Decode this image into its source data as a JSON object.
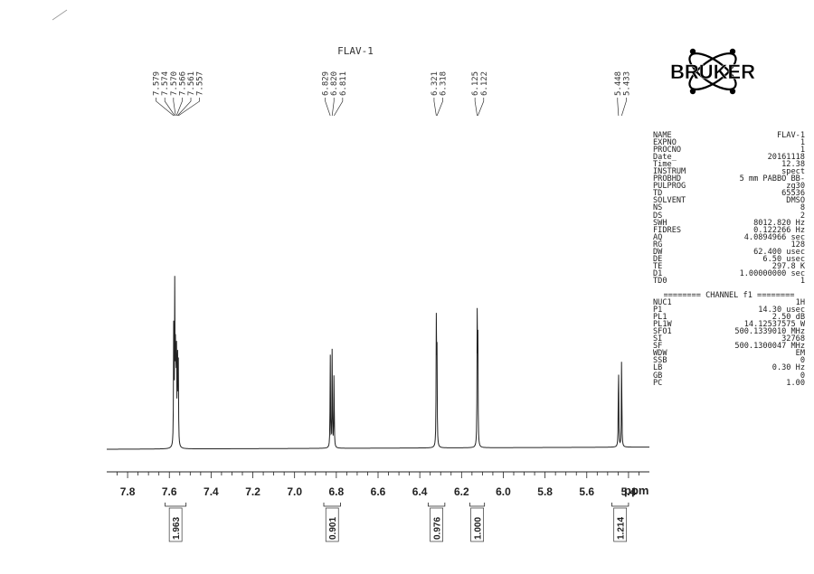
{
  "chart_data": {
    "type": "line",
    "title": "FLAV-1",
    "xlabel": "ppm",
    "xlim": [
      7.9,
      5.3
    ],
    "ylim": [
      0,
      1.0
    ],
    "x_ticks": [
      7.8,
      7.6,
      7.4,
      7.2,
      7.0,
      6.8,
      6.6,
      6.4,
      6.2,
      6.0,
      5.8,
      5.6,
      5.4
    ],
    "x_tick_labels": [
      "7.8",
      "7.6",
      "7.4",
      "7.2",
      "7.0",
      "6.8",
      "6.6",
      "6.4",
      "6.2",
      "6.0",
      "5.8",
      "5.6",
      "5.4"
    ],
    "series": [
      {
        "peaks": [
          {
            "ppm": 7.579,
            "height": 0.7
          },
          {
            "ppm": 7.574,
            "height": 0.86
          },
          {
            "ppm": 7.57,
            "height": 0.62
          },
          {
            "ppm": 7.566,
            "height": 0.58
          },
          {
            "ppm": 7.561,
            "height": 0.62
          },
          {
            "ppm": 7.557,
            "height": 0.45
          },
          {
            "ppm": 6.829,
            "height": 0.52
          },
          {
            "ppm": 6.82,
            "height": 0.54
          },
          {
            "ppm": 6.811,
            "height": 0.45
          },
          {
            "ppm": 6.321,
            "height": 0.66
          },
          {
            "ppm": 6.318,
            "height": 0.62
          },
          {
            "ppm": 6.125,
            "height": 0.69
          },
          {
            "ppm": 6.122,
            "height": 0.64
          },
          {
            "ppm": 5.448,
            "height": 0.52
          },
          {
            "ppm": 5.433,
            "height": 0.54
          }
        ]
      }
    ],
    "peak_label_groups": [
      {
        "labels": [
          "7.579",
          "7.574",
          "7.570",
          "7.566",
          "7.561",
          "7.557"
        ]
      },
      {
        "labels": [
          "6.829",
          "6.820",
          "6.811"
        ]
      },
      {
        "labels": [
          "6.321",
          "6.318"
        ]
      },
      {
        "labels": [
          "6.125",
          "6.122"
        ]
      },
      {
        "labels": [
          "5.448",
          "5.433"
        ]
      }
    ],
    "integrals": [
      {
        "label": "1.963",
        "from": 7.62,
        "to": 7.52
      },
      {
        "label": "0.901",
        "from": 6.86,
        "to": 6.78
      },
      {
        "label": "0.976",
        "from": 6.36,
        "to": 6.28
      },
      {
        "label": "1.000",
        "from": 6.16,
        "to": 6.09
      },
      {
        "label": "1.214",
        "from": 5.48,
        "to": 5.4
      }
    ]
  },
  "logo": {
    "text": "BRUKER"
  },
  "acquisition_params": [
    {
      "name": "NAME",
      "value": "FLAV-1"
    },
    {
      "name": "EXPNO",
      "value": "1"
    },
    {
      "name": "PROCNO",
      "value": "1"
    },
    {
      "name": "Date_",
      "value": "20161118"
    },
    {
      "name": "Time",
      "value": "12.38"
    },
    {
      "name": "INSTRUM",
      "value": "spect"
    },
    {
      "name": "PROBHD",
      "value": "5 mm PABBO BB-"
    },
    {
      "name": "PULPROG",
      "value": "zg30"
    },
    {
      "name": "TD",
      "value": "65536"
    },
    {
      "name": "SOLVENT",
      "value": "DMSO"
    },
    {
      "name": "NS",
      "value": "8"
    },
    {
      "name": "DS",
      "value": "2"
    },
    {
      "name": "SWH",
      "value": "8012.820 Hz"
    },
    {
      "name": "FIDRES",
      "value": "0.122266 Hz"
    },
    {
      "name": "AQ",
      "value": "4.0894966 sec"
    },
    {
      "name": "RG",
      "value": "128"
    },
    {
      "name": "DW",
      "value": "62.400 usec"
    },
    {
      "name": "DE",
      "value": "6.50 usec"
    },
    {
      "name": "TE",
      "value": "297.8 K"
    },
    {
      "name": "D1",
      "value": "1.00000000 sec"
    },
    {
      "name": "TD0",
      "value": "1"
    }
  ],
  "channel_header": "======== CHANNEL f1 ========",
  "channel_params": [
    {
      "name": "NUC1",
      "value": "1H"
    },
    {
      "name": "P1",
      "value": "14.30 usec"
    },
    {
      "name": "PL1",
      "value": "2.50 dB"
    },
    {
      "name": "PL1W",
      "value": "14.12537575 W"
    },
    {
      "name": "SFO1",
      "value": "500.1339010 MHz"
    },
    {
      "name": "SI",
      "value": "32768"
    },
    {
      "name": "SF",
      "value": "500.1300047 MHz"
    },
    {
      "name": "WDW",
      "value": "EM"
    },
    {
      "name": "SSB",
      "value": "0"
    },
    {
      "name": "LB",
      "value": "0.30 Hz"
    },
    {
      "name": "GB",
      "value": "0"
    },
    {
      "name": "PC",
      "value": "1.00"
    }
  ]
}
